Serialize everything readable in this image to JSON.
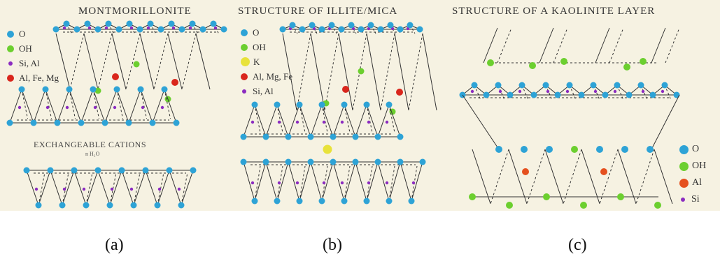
{
  "panels": {
    "a": {
      "title": "MONTMORILLONITE",
      "legend": [
        {
          "label": "O",
          "color": "#2ea3d6"
        },
        {
          "label": "OH",
          "color": "#6ccf2f"
        },
        {
          "label": "Si, Al",
          "color": "#8b2cc0"
        },
        {
          "label": "Al, Fe, Mg",
          "color": "#d9261c"
        }
      ],
      "interlayer_label": "EXCHANGEABLE CATIONS",
      "interlayer_sub": "n H₂O",
      "caption": "(a)"
    },
    "b": {
      "title": "STRUCTURE OF ILLITE/MICA",
      "legend": [
        {
          "label": "O",
          "color": "#2ea3d6"
        },
        {
          "label": "OH",
          "color": "#6ccf2f"
        },
        {
          "label": "K",
          "color": "#e8e23a"
        },
        {
          "label": "Al, Mg, Fe",
          "color": "#d9261c"
        },
        {
          "label": "Si, Al",
          "color": "#8b2cc0"
        }
      ],
      "caption": "(b)"
    },
    "c": {
      "title": "STRUCTURE OF A KAOLINITE LAYER",
      "legend": [
        {
          "label": "O",
          "color": "#2ea3d6"
        },
        {
          "label": "OH",
          "color": "#6ccf2f"
        },
        {
          "label": "Al",
          "color": "#e5501e"
        },
        {
          "label": "Si",
          "color": "#8b2cc0"
        }
      ],
      "caption": "(c)"
    }
  }
}
